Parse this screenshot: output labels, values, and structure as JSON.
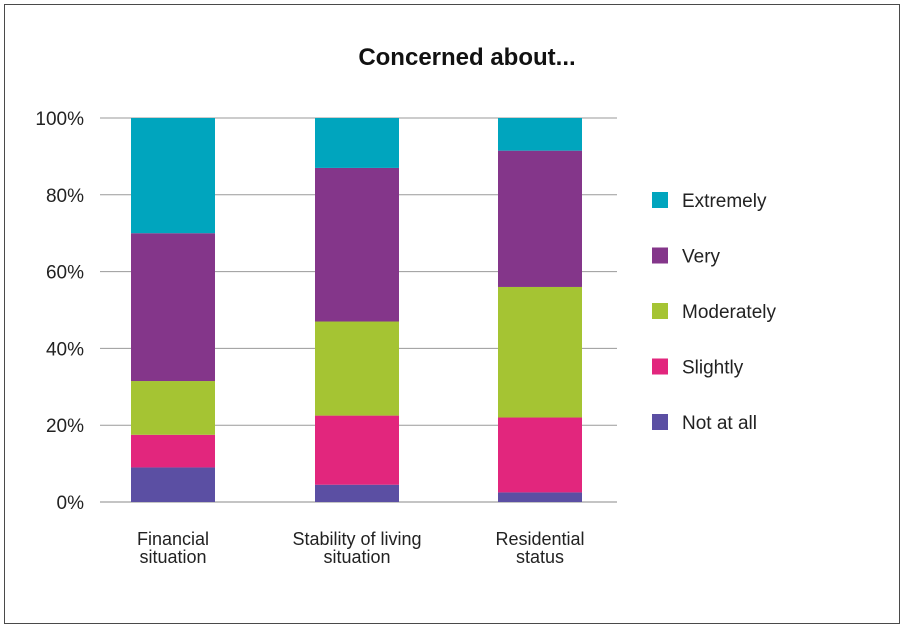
{
  "chart_data": {
    "type": "bar",
    "stacked": true,
    "title": "Concerned about...",
    "xlabel": "",
    "ylabel": "",
    "ylim": [
      0,
      100
    ],
    "yticks": [
      "0%",
      "20%",
      "40%",
      "60%",
      "80%",
      "100%"
    ],
    "grid": true,
    "legend_position": "right",
    "categories": [
      [
        "Financial",
        "situation"
      ],
      [
        "Stability of living",
        "situation"
      ],
      [
        "Residential",
        "status"
      ]
    ],
    "series": [
      {
        "name": "Not at all",
        "color": "#5B4FA3",
        "values": [
          9,
          4.5,
          2.5
        ]
      },
      {
        "name": "Slightly",
        "color": "#E2267D",
        "values": [
          8.5,
          18,
          19.5
        ]
      },
      {
        "name": "Moderately",
        "color": "#A5C433",
        "values": [
          14,
          24.5,
          34
        ]
      },
      {
        "name": "Very",
        "color": "#84368A",
        "values": [
          38.5,
          40,
          35.5
        ]
      },
      {
        "name": "Extremely",
        "color": "#00A5BE",
        "values": [
          30,
          13,
          8.5
        ]
      }
    ]
  }
}
